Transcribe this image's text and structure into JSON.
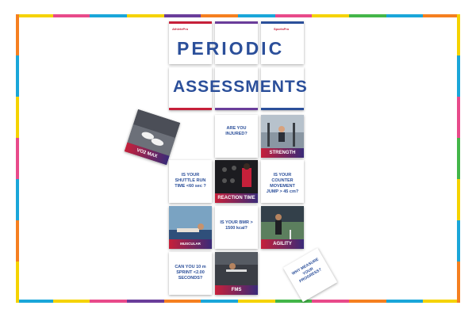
{
  "title": {
    "line1": "PERIODIC",
    "line2": "ASSESSMENTS"
  },
  "logos": {
    "left": "AthletePro",
    "right": "SportsPro"
  },
  "cards": {
    "injured": "ARE YOU INJURED?",
    "strength": "STRENGTH",
    "vo2": "VO2 MAX",
    "shuttle": "IS YOUR SHUTTLE RUN TIME <60 sec ?",
    "reaction": "REACTION TIME",
    "counter": "IS YOUR COUNTER MOVEMENT JUMP > 45 cm?",
    "muscular": "MUSCULAR ENDURANCE",
    "bmr": "IS YOUR BMR > 1500 kcal?",
    "agility": "AGILITY",
    "sprint": "CAN YOU 10 m SPRINT <2.00 SECONDS?",
    "fms": "FMS",
    "why": "WHY MEASURE YOUR PROGRESS?"
  },
  "colors": {
    "accent_red": "#c6203a",
    "accent_navy": "#2b4f9a",
    "accent_purple": "#3a2a78"
  }
}
